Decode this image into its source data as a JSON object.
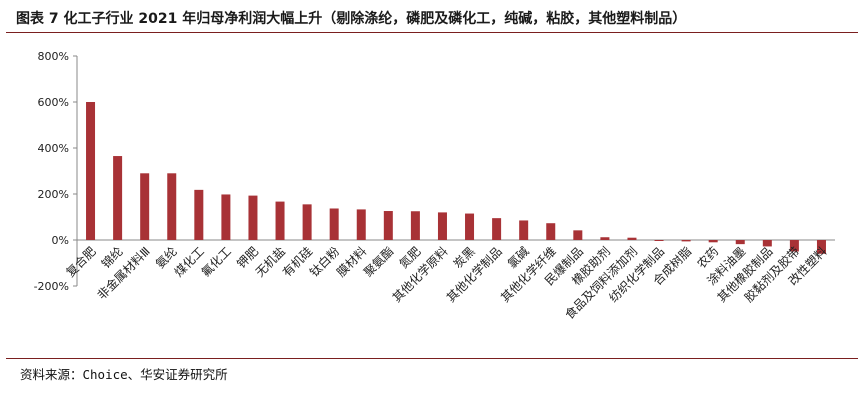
{
  "header": {
    "title": "图表 7 化工子行业 2021 年归母净利润大幅上升（剔除涤纶，磷肥及磷化工，纯碱，粘胶，其他塑料制品）"
  },
  "footer": {
    "source": "资料来源：Choice、华安证券研究所"
  },
  "colors": {
    "bar": "#a83236",
    "rule": "#7a1f1f",
    "axis": "#888888"
  },
  "chart_data": {
    "type": "bar",
    "title": "",
    "xlabel": "",
    "ylabel": "",
    "ylim": [
      -200,
      800
    ],
    "yticks": [
      -200,
      0,
      200,
      400,
      600,
      800
    ],
    "ytick_labels": [
      "-200%",
      "0%",
      "200%",
      "400%",
      "600%",
      "800%"
    ],
    "grid": false,
    "categories": [
      "复合肥",
      "锦纶",
      "非金属材料Ⅲ",
      "氨纶",
      "煤化工",
      "氟化工",
      "钾肥",
      "无机盐",
      "有机硅",
      "钛白粉",
      "膜材料",
      "聚氨酯",
      "氮肥",
      "其他化学原料",
      "炭黑",
      "其他化学制品",
      "氯碱",
      "其他化学纤维",
      "民爆制品",
      "橡胶助剂",
      "食品及饲料添加剂",
      "纺织化学制品",
      "合成树脂",
      "农药",
      "涂料油墨",
      "其他橡胶制品",
      "胶黏剂及胶带",
      "改性塑料"
    ],
    "values": [
      600,
      365,
      290,
      290,
      218,
      198,
      193,
      167,
      155,
      137,
      133,
      126,
      125,
      120,
      115,
      95,
      85,
      73,
      42,
      12,
      10,
      -3,
      -6,
      -10,
      -18,
      -28,
      -50,
      -60
    ]
  }
}
